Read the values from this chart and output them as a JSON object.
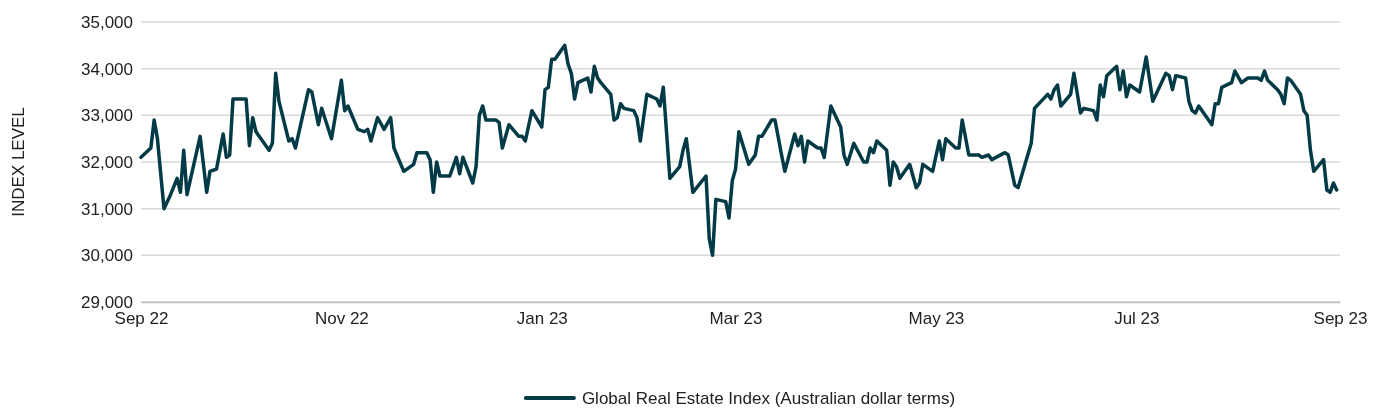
{
  "chart_data": {
    "type": "line",
    "ylabel": "INDEX LEVEL",
    "xlim": [
      "2022-09-01",
      "2023-09-01"
    ],
    "xticks": [
      {
        "value": "2022-09-01",
        "label": "Sep 22"
      },
      {
        "value": "2022-11-01",
        "label": "Nov 22"
      },
      {
        "value": "2023-01-01",
        "label": "Jan 23"
      },
      {
        "value": "2023-03-01",
        "label": "Mar 23"
      },
      {
        "value": "2023-05-01",
        "label": "May 23"
      },
      {
        "value": "2023-07-01",
        "label": "Jul 23"
      },
      {
        "value": "2023-09-01",
        "label": "Sep 23"
      }
    ],
    "ylim": [
      29000,
      35000
    ],
    "yticks": [
      {
        "value": 29000,
        "label": "29,000"
      },
      {
        "value": 30000,
        "label": "30,000"
      },
      {
        "value": 31000,
        "label": "31,000"
      },
      {
        "value": 32000,
        "label": "32,000"
      },
      {
        "value": 33000,
        "label": "33,000"
      },
      {
        "value": 34000,
        "label": "34,000"
      },
      {
        "value": 35000,
        "label": "35,000"
      }
    ],
    "grid": "y",
    "legend": "bottom",
    "marker": "none",
    "line_style": "solid",
    "x": [
      "2022-09-01",
      "2022-09-04",
      "2022-09-05",
      "2022-09-06",
      "2022-09-08",
      "2022-09-10",
      "2022-09-12",
      "2022-09-13",
      "2022-09-14",
      "2022-09-15",
      "2022-09-19",
      "2022-09-21",
      "2022-09-22",
      "2022-09-24",
      "2022-09-26",
      "2022-09-27",
      "2022-09-28",
      "2022-09-29",
      "2022-10-03",
      "2022-10-04",
      "2022-10-05",
      "2022-10-06",
      "2022-10-08",
      "2022-10-10",
      "2022-10-11",
      "2022-10-12",
      "2022-10-13",
      "2022-10-16",
      "2022-10-17",
      "2022-10-18",
      "2022-10-22",
      "2022-10-23",
      "2022-10-25",
      "2022-10-26",
      "2022-10-29",
      "2022-11-01",
      "2022-11-02",
      "2022-11-03",
      "2022-11-06",
      "2022-11-08",
      "2022-11-09",
      "2022-11-10",
      "2022-11-12",
      "2022-11-14",
      "2022-11-16",
      "2022-11-17",
      "2022-11-20",
      "2022-11-23",
      "2022-11-24",
      "2022-11-27",
      "2022-11-28",
      "2022-11-29",
      "2022-11-30",
      "2022-12-01",
      "2022-12-04",
      "2022-12-06",
      "2022-12-07",
      "2022-12-08",
      "2022-12-11",
      "2022-12-12",
      "2022-12-13",
      "2022-12-14",
      "2022-12-15",
      "2022-12-18",
      "2022-12-19",
      "2022-12-20",
      "2022-12-22",
      "2022-12-25",
      "2022-12-26",
      "2022-12-27",
      "2022-12-29",
      "2023-01-01",
      "2023-01-02",
      "2023-01-03",
      "2023-01-04",
      "2023-01-05",
      "2023-01-08",
      "2023-01-09",
      "2023-01-10",
      "2023-01-11",
      "2023-01-12",
      "2023-01-15",
      "2023-01-16",
      "2023-01-17",
      "2023-01-18",
      "2023-01-19",
      "2023-01-22",
      "2023-01-23",
      "2023-01-24",
      "2023-01-25",
      "2023-01-26",
      "2023-01-29",
      "2023-01-30",
      "2023-01-31",
      "2023-02-02",
      "2023-02-05",
      "2023-02-06",
      "2023-02-07",
      "2023-02-09",
      "2023-02-12",
      "2023-02-13",
      "2023-02-14",
      "2023-02-16",
      "2023-02-20",
      "2023-02-21",
      "2023-02-22",
      "2023-02-23",
      "2023-02-26",
      "2023-02-27",
      "2023-02-28",
      "2023-03-01",
      "2023-03-02",
      "2023-03-05",
      "2023-03-07",
      "2023-03-08",
      "2023-03-09",
      "2023-03-12",
      "2023-03-13",
      "2023-03-15",
      "2023-03-16",
      "2023-03-19",
      "2023-03-20",
      "2023-03-21",
      "2023-03-22",
      "2023-03-23",
      "2023-03-26",
      "2023-03-27",
      "2023-03-28",
      "2023-03-30",
      "2023-04-02",
      "2023-04-03",
      "2023-04-04",
      "2023-04-06",
      "2023-04-09",
      "2023-04-10",
      "2023-04-11",
      "2023-04-12",
      "2023-04-13",
      "2023-04-16",
      "2023-04-17",
      "2023-04-18",
      "2023-04-19",
      "2023-04-20",
      "2023-04-23",
      "2023-04-25",
      "2023-04-26",
      "2023-04-27",
      "2023-04-30",
      "2023-05-02",
      "2023-05-03",
      "2023-05-04",
      "2023-05-07",
      "2023-05-08",
      "2023-05-09",
      "2023-05-11",
      "2023-05-14",
      "2023-05-15",
      "2023-05-17",
      "2023-05-18",
      "2023-05-22",
      "2023-05-23",
      "2023-05-25",
      "2023-05-26",
      "2023-05-30",
      "2023-05-31",
      "2023-06-02",
      "2023-06-04",
      "2023-06-05",
      "2023-06-06",
      "2023-06-07",
      "2023-06-08",
      "2023-06-11",
      "2023-06-12",
      "2023-06-14",
      "2023-06-15",
      "2023-06-18",
      "2023-06-19",
      "2023-06-20",
      "2023-06-21",
      "2023-06-22",
      "2023-06-25",
      "2023-06-26",
      "2023-06-27",
      "2023-06-28",
      "2023-06-29",
      "2023-07-02",
      "2023-07-04",
      "2023-07-06",
      "2023-07-10",
      "2023-07-11",
      "2023-07-12",
      "2023-07-13",
      "2023-07-16",
      "2023-07-17",
      "2023-07-18",
      "2023-07-19",
      "2023-07-20",
      "2023-07-24",
      "2023-07-25",
      "2023-07-26",
      "2023-07-27",
      "2023-07-30",
      "2023-07-31",
      "2023-08-02",
      "2023-08-04",
      "2023-08-07",
      "2023-08-08",
      "2023-08-09",
      "2023-08-10",
      "2023-08-13",
      "2023-08-14",
      "2023-08-15",
      "2023-08-16",
      "2023-08-17",
      "2023-08-20",
      "2023-08-21",
      "2023-08-22",
      "2023-08-23",
      "2023-08-24",
      "2023-08-27",
      "2023-08-28",
      "2023-08-29",
      "2023-08-30",
      "2023-08-31"
    ],
    "series": [
      {
        "name": "Global Real Estate Index (Australian dollar terms)",
        "color": "#023a46",
        "values": [
          32100,
          32300,
          32900,
          32500,
          31000,
          31300,
          31650,
          31350,
          32250,
          31300,
          32550,
          31350,
          31800,
          31850,
          32600,
          32100,
          32150,
          33350,
          33350,
          32350,
          32950,
          32650,
          32450,
          32250,
          32400,
          33900,
          33300,
          32450,
          32500,
          32300,
          33550,
          33500,
          32800,
          33150,
          32500,
          33750,
          33100,
          33200,
          32700,
          32650,
          32700,
          32450,
          32950,
          32700,
          32950,
          32300,
          31800,
          31950,
          32200,
          32200,
          32050,
          31350,
          32000,
          31700,
          31700,
          32100,
          31750,
          32100,
          31550,
          31900,
          33000,
          33200,
          32900,
          32900,
          32850,
          32300,
          32800,
          32550,
          32550,
          32450,
          33100,
          32750,
          33550,
          33600,
          34200,
          34200,
          34500,
          34100,
          33900,
          33350,
          33700,
          33800,
          33500,
          34050,
          33800,
          33700,
          33450,
          32900,
          32950,
          33250,
          33150,
          33100,
          32950,
          32450,
          33450,
          33350,
          33200,
          33600,
          31650,
          31900,
          32250,
          32500,
          31350,
          31700,
          30350,
          30000,
          31200,
          31150,
          30800,
          31600,
          31850,
          32650,
          31950,
          32150,
          32550,
          32550,
          32900,
          32900,
          32150,
          31800,
          32600,
          32350,
          32550,
          32000,
          32450,
          32300,
          32300,
          32100,
          33200,
          32750,
          32150,
          31950,
          32400,
          32000,
          32000,
          32300,
          32200,
          32450,
          32250,
          31500,
          32000,
          31900,
          31650,
          31950,
          31450,
          31550,
          31950,
          31800,
          32450,
          32050,
          32500,
          32300,
          32300,
          32900,
          32150,
          32150,
          32100,
          32150,
          32050,
          32200,
          32150,
          31500,
          31450,
          32400,
          33150,
          33300,
          33450,
          33350,
          33550,
          33650,
          33200,
          33450,
          33900,
          33050,
          33150,
          33100,
          32900,
          33650,
          33400,
          33850,
          34050,
          33550,
          33950,
          33400,
          33650,
          33500,
          34250,
          33300,
          33900,
          33850,
          33550,
          33850,
          33800,
          33300,
          33100,
          33050,
          33200,
          32800,
          33250,
          33250,
          33600,
          33700,
          33950,
          33700,
          33800,
          33800,
          33750,
          33950,
          33750,
          33550,
          33450,
          33250,
          33800,
          33750,
          33450,
          33100,
          33000,
          32250,
          31800,
          32050,
          31400,
          31350,
          31550,
          31400
        ]
      }
    ]
  }
}
